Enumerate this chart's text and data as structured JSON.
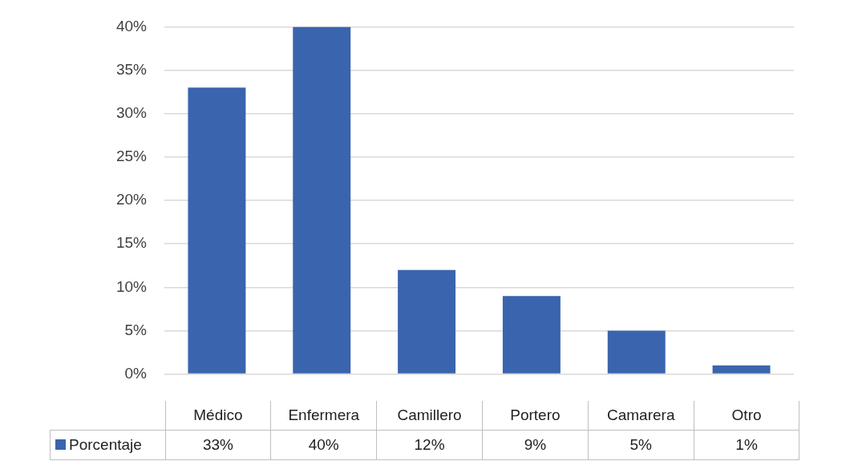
{
  "chart_data": {
    "type": "bar",
    "categories": [
      "Médico",
      "Enfermera",
      "Camillero",
      "Portero",
      "Camarera",
      "Otro"
    ],
    "series": [
      {
        "name": "Porcentaje",
        "color": "#3a64ae",
        "values": [
          33,
          40,
          12,
          9,
          5,
          1
        ],
        "value_labels": [
          "33%",
          "40%",
          "12%",
          "9%",
          "5%",
          "1%"
        ]
      }
    ],
    "ylim": [
      0,
      40
    ],
    "yticks": [
      {
        "value": 0,
        "label": "0%"
      },
      {
        "value": 5,
        "label": "5%"
      },
      {
        "value": 10,
        "label": "10%"
      },
      {
        "value": 15,
        "label": "15%"
      },
      {
        "value": 20,
        "label": "20%"
      },
      {
        "value": 25,
        "label": "25%"
      },
      {
        "value": 30,
        "label": "30%"
      },
      {
        "value": 35,
        "label": "35%"
      },
      {
        "value": 40,
        "label": "40%"
      }
    ],
    "grid": "y",
    "legend": "bottom"
  }
}
